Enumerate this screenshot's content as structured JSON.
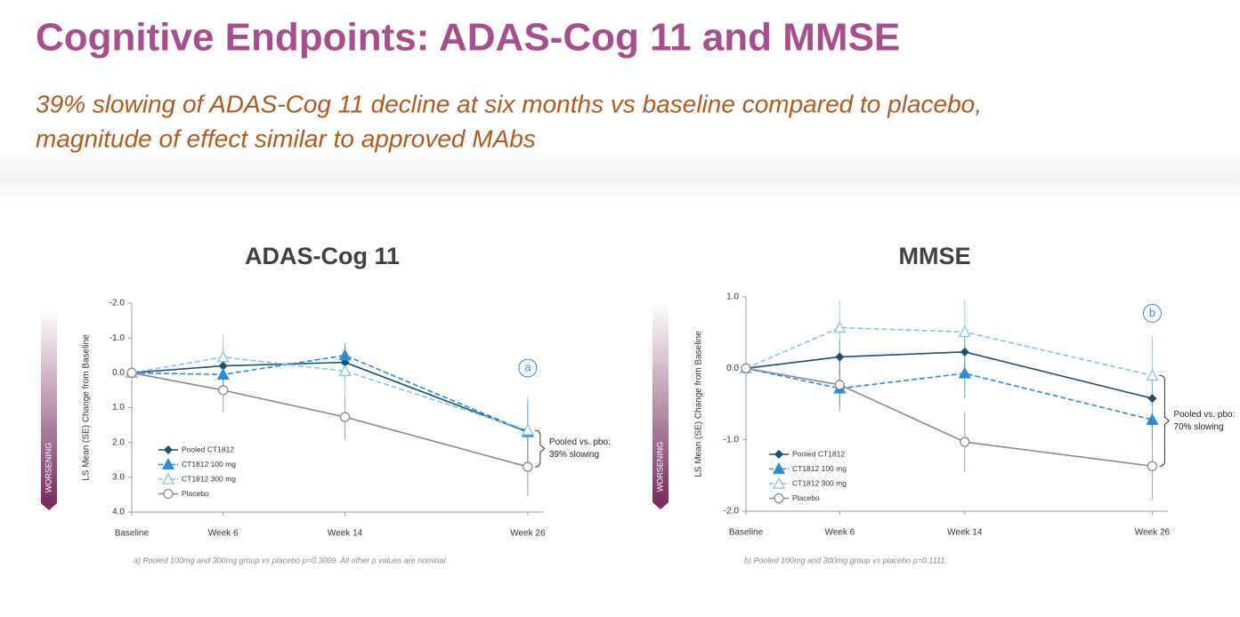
{
  "slide": {
    "title": "Cognitive Endpoints: ADAS-Cog 11 and MMSE",
    "subtitle": [
      "39% slowing of ADAS-Cog 11 decline at six months vs baseline compared to placebo,",
      "magnitude of effect similar to approved MAbs"
    ]
  },
  "chart_data": [
    {
      "type": "line",
      "title": "ADAS-Cog 11",
      "y_label": "LS Mean (SE) Change from Baseline",
      "side_label": "WORSENING",
      "x": [
        0,
        6,
        14,
        26
      ],
      "xlim": [
        0,
        27
      ],
      "xticks": [
        {
          "value": 0,
          "label": "Baseline"
        },
        {
          "value": 6,
          "label": "Week 6"
        },
        {
          "value": 14,
          "label": "Week 14"
        },
        {
          "value": 26,
          "label": "Week 26"
        }
      ],
      "ylim": [
        4,
        -2
      ],
      "yticks": [
        {
          "value": -2,
          "label": "-2.0"
        },
        {
          "value": -1,
          "label": "-1.0"
        },
        {
          "value": 0,
          "label": "0.0"
        },
        {
          "value": 1,
          "label": "1.0"
        },
        {
          "value": 2,
          "label": "2.0"
        },
        {
          "value": 3,
          "label": "3.0"
        },
        {
          "value": 4,
          "label": "4.0"
        }
      ],
      "series": [
        {
          "name": "Pooled CT1812",
          "color": "#1b4f72",
          "dash": "solid",
          "marker": "diamond",
          "values": [
            0,
            -0.2,
            -0.3,
            1.7
          ],
          "errors": [
            0,
            0.45,
            0.45,
            0.9
          ]
        },
        {
          "name": "CT1812 100 mg",
          "color": "#2a8bd8",
          "dash": "dashed",
          "marker": "triangle",
          "values": [
            0,
            0.05,
            -0.5,
            1.7
          ],
          "errors": [
            0,
            0.4,
            0.35,
            0.8
          ]
        },
        {
          "name": "CT1812 300 mg",
          "color": "#86c3ec",
          "dash": "dashed",
          "marker": "open-triangle",
          "values": [
            0,
            -0.45,
            -0.05,
            1.65
          ],
          "errors": [
            0,
            0.65,
            0.65,
            0.95
          ]
        },
        {
          "name": "Placebo",
          "color": "#8a8a8a",
          "dash": "solid",
          "marker": "open-circle",
          "values": [
            0,
            0.5,
            1.27,
            2.7
          ],
          "errors": [
            0,
            0.65,
            0.65,
            0.85
          ]
        }
      ],
      "badge": "a",
      "comparison": [
        "Pooled vs. pbo:",
        "39% slowing"
      ],
      "note": "a) Pooled 100mg and 300mg group vs placebo p=0.3009. All other p values are nominal"
    },
    {
      "type": "line",
      "title": "MMSE",
      "y_label": "LS Mean (SE) Change from Baseline",
      "side_label": "WORSENING",
      "x": [
        0,
        6,
        14,
        26
      ],
      "xlim": [
        0,
        27
      ],
      "xticks": [
        {
          "value": 0,
          "label": "Baseline"
        },
        {
          "value": 6,
          "label": "Week 6"
        },
        {
          "value": 14,
          "label": "Week 14"
        },
        {
          "value": 26,
          "label": "Week 26"
        }
      ],
      "ylim": [
        -2,
        1
      ],
      "yticks": [
        {
          "value": 1,
          "label": "1.0"
        },
        {
          "value": 0,
          "label": "0.0"
        },
        {
          "value": -1,
          "label": "-1.0"
        },
        {
          "value": -2,
          "label": "-2.0"
        }
      ],
      "series": [
        {
          "name": "Pooled CT1812",
          "color": "#1b4f72",
          "dash": "solid",
          "marker": "diamond",
          "values": [
            0,
            0.16,
            0.23,
            -0.42
          ],
          "errors": [
            0,
            0.25,
            0.25,
            0.3
          ]
        },
        {
          "name": "CT1812 100 mg",
          "color": "#2a8bd8",
          "dash": "dashed",
          "marker": "triangle",
          "values": [
            0,
            -0.28,
            -0.07,
            -0.72
          ],
          "errors": [
            0,
            0.25,
            0.35,
            0.3
          ]
        },
        {
          "name": "CT1812 300 mg",
          "color": "#86c3ec",
          "dash": "dashed",
          "marker": "open-triangle",
          "values": [
            0,
            0.57,
            0.51,
            -0.1
          ],
          "errors": [
            0,
            0.38,
            0.45,
            0.55
          ]
        },
        {
          "name": "Placebo",
          "color": "#8a8a8a",
          "dash": "solid",
          "marker": "open-circle",
          "values": [
            0,
            -0.23,
            -1.03,
            -1.37
          ],
          "errors": [
            0,
            0.38,
            0.42,
            0.47
          ]
        }
      ],
      "badge": "b",
      "comparison": [
        "Pooled vs. pbo:",
        "70% slowing"
      ],
      "note": "b) Pooled 100mg and 300mg group vs placebo p=0.1111."
    }
  ]
}
